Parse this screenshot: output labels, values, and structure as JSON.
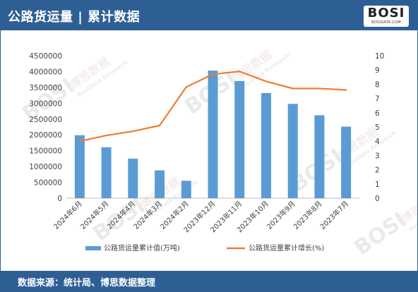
{
  "header": {
    "title": "公路货运量 | 累计数据",
    "logo": {
      "text": "BOSI",
      "subtext": "BOSIDATA.COM"
    }
  },
  "footer": {
    "source": "数据来源：统计局、博思数据整理"
  },
  "watermark": {
    "brand": "BOSI",
    "cn": "博思数据",
    "en": "BosiData Research"
  },
  "colors": {
    "header_bg": "#2e5f94",
    "bar": "#5b9bd5",
    "line": "#ed7d31"
  },
  "chart_data": {
    "type": "bar",
    "categories": [
      "2024年6月",
      "2024年5月",
      "2024年4月",
      "2024年3月",
      "2024年2月",
      "2023年12月",
      "2023年11月",
      "2023年10月",
      "2023年9月",
      "2023年8月",
      "2023年7月"
    ],
    "series": [
      {
        "name": "公路货运量累计值(万吨)",
        "type": "bar",
        "axis": "left",
        "values": [
          1990000,
          1610000,
          1250000,
          880000,
          550000,
          4030000,
          3700000,
          3320000,
          2980000,
          2620000,
          2260000
        ]
      },
      {
        "name": "公路货运量累计增长(%)",
        "type": "line",
        "axis": "right",
        "values": [
          4.0,
          4.4,
          4.7,
          5.1,
          7.8,
          8.7,
          8.9,
          8.2,
          7.7,
          7.7,
          7.6
        ]
      }
    ],
    "y_left": {
      "min": 0,
      "max": 4500000,
      "step": 500000,
      "ticks": [
        "0",
        "500000",
        "1000000",
        "1500000",
        "2000000",
        "2500000",
        "3000000",
        "3500000",
        "4000000",
        "4500000"
      ]
    },
    "y_right": {
      "min": 0,
      "max": 10,
      "step": 1,
      "ticks": [
        "0",
        "1",
        "2",
        "3",
        "4",
        "5",
        "6",
        "7",
        "8",
        "9",
        "10"
      ]
    },
    "grid": false,
    "legend": "bottom"
  }
}
